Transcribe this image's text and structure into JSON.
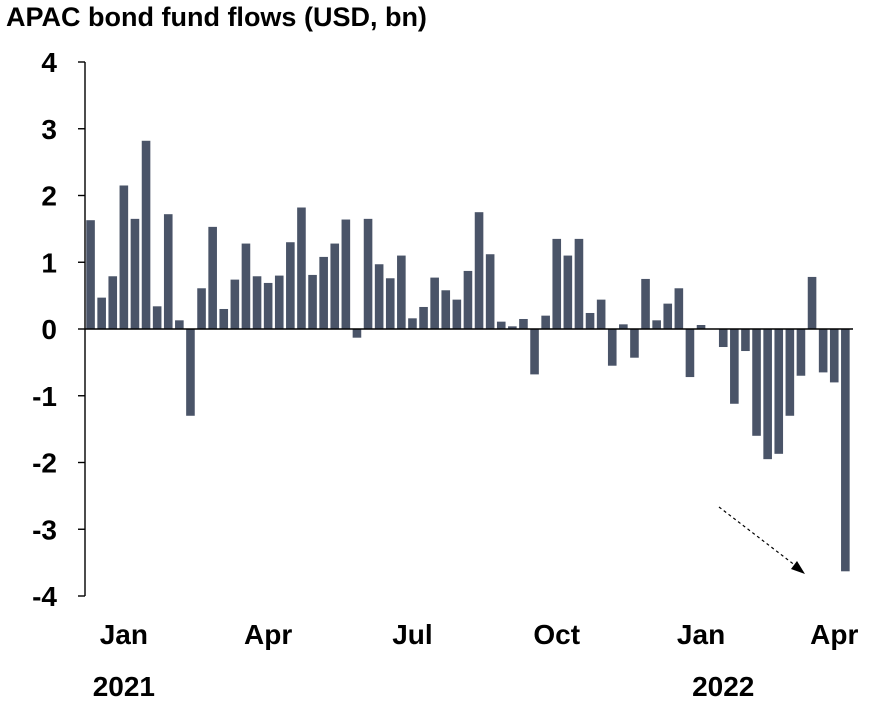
{
  "chart_data": {
    "type": "bar",
    "title": "APAC bond fund flows (USD, bn)",
    "xlabel": "",
    "ylabel": "",
    "ylim": [
      -4,
      4
    ],
    "y_ticks": [
      "4",
      "3",
      "2",
      "1",
      "0",
      "-1",
      "-2",
      "-3",
      "-4"
    ],
    "y_tick_values": [
      4,
      3,
      2,
      1,
      0,
      -1,
      -2,
      -3,
      -4
    ],
    "x_tick_labels": [
      {
        "label": "Jan",
        "bar_index": 3
      },
      {
        "label": "Apr",
        "bar_index": 16
      },
      {
        "label": "Jul",
        "bar_index": 29
      },
      {
        "label": "Oct",
        "bar_index": 42
      },
      {
        "label": "Jan",
        "bar_index": 55
      },
      {
        "label": "Apr",
        "bar_index": 67
      }
    ],
    "year_labels": [
      {
        "label": "2021",
        "bar_index": 3
      },
      {
        "label": "2022",
        "bar_index": 57
      }
    ],
    "bar_color": "#4a5468",
    "values": [
      1.63,
      0.47,
      0.79,
      2.15,
      1.65,
      2.82,
      0.34,
      1.72,
      0.13,
      -1.3,
      0.61,
      1.53,
      0.3,
      0.74,
      1.28,
      0.79,
      0.69,
      0.8,
      1.3,
      1.82,
      0.81,
      1.08,
      1.28,
      1.64,
      -0.13,
      1.65,
      0.97,
      0.76,
      1.1,
      0.16,
      0.33,
      0.77,
      0.58,
      0.44,
      0.87,
      1.75,
      1.12,
      0.11,
      0.04,
      0.15,
      -0.68,
      0.2,
      1.35,
      1.1,
      1.35,
      0.24,
      0.44,
      -0.55,
      0.07,
      -0.43,
      0.75,
      0.13,
      0.38,
      0.61,
      -0.72,
      0.06,
      0.0,
      -0.27,
      -1.12,
      -0.33,
      -1.6,
      -1.95,
      -1.87,
      -1.3,
      -0.7,
      0.78,
      -0.65,
      -0.8,
      -3.63
    ]
  }
}
